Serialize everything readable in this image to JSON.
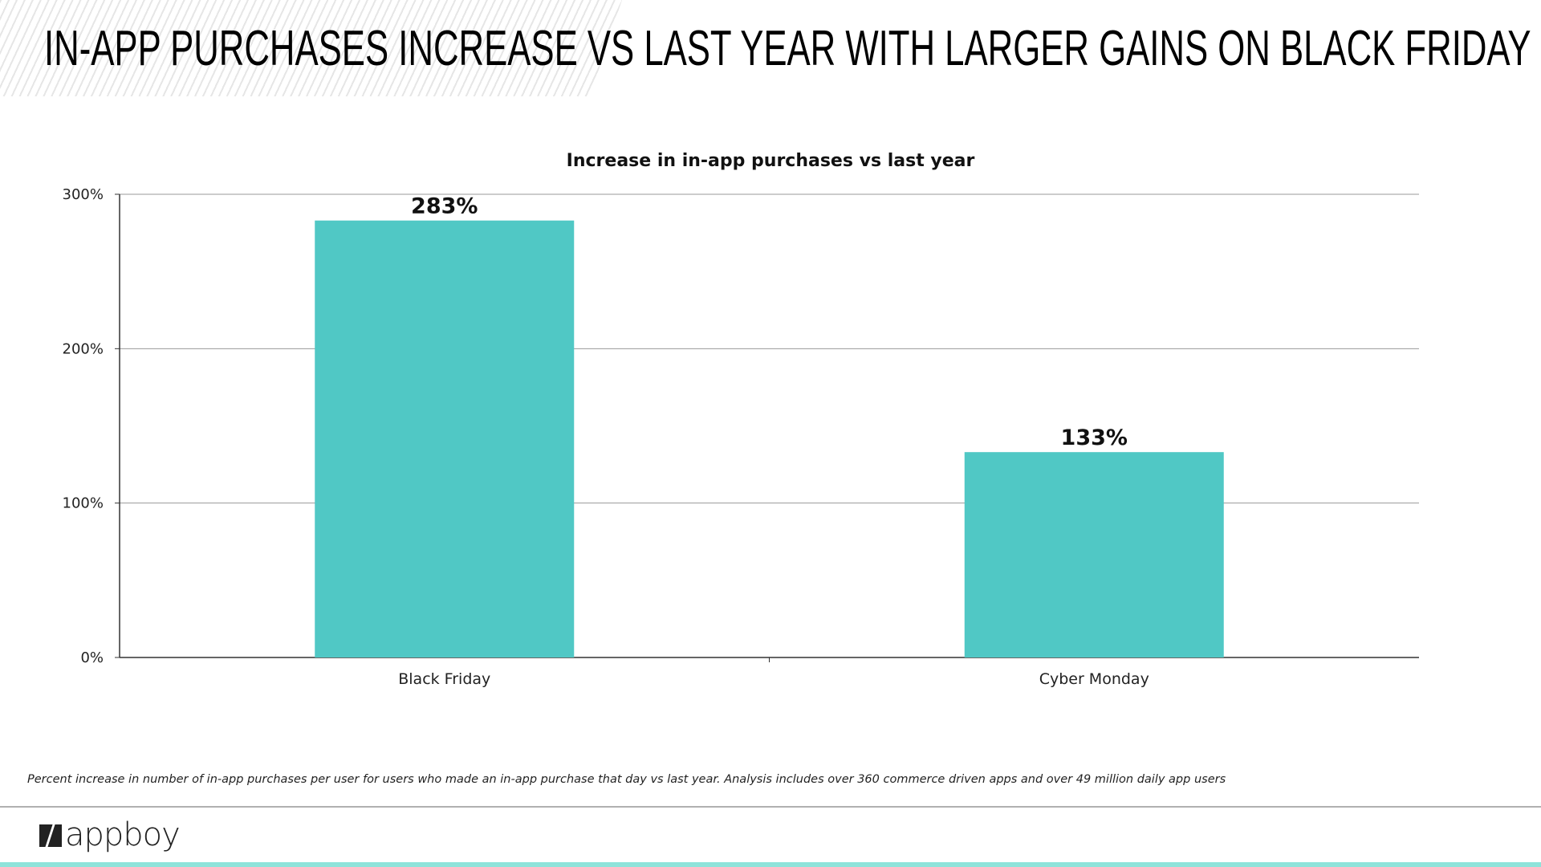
{
  "header": {
    "title": "IN-APP PURCHASES INCREASE VS LAST YEAR WITH LARGER GAINS ON BLACK FRIDAY"
  },
  "chart_data": {
    "type": "bar",
    "title": "Increase in in-app purchases vs last year",
    "categories": [
      "Black Friday",
      "Cyber Monday"
    ],
    "values": [
      283,
      133
    ],
    "data_labels": [
      "283%",
      "133%"
    ],
    "y_ticks": [
      0,
      100,
      200,
      300
    ],
    "y_tick_labels": [
      "0%",
      "100%",
      "200%",
      "300%"
    ],
    "ylim": [
      0,
      300
    ],
    "grid": true,
    "xlabel": "",
    "ylabel": "",
    "bar_color": "#50c8c5"
  },
  "footnote": "Percent increase in number of in-app purchases per user for users who made an in-app purchase that day vs last year.  Analysis includes over 360 commerce driven apps and over 49 million daily app users",
  "logo": {
    "text": "appboy"
  },
  "colors": {
    "accent": "#8ee3da",
    "bar": "#50c8c5"
  }
}
